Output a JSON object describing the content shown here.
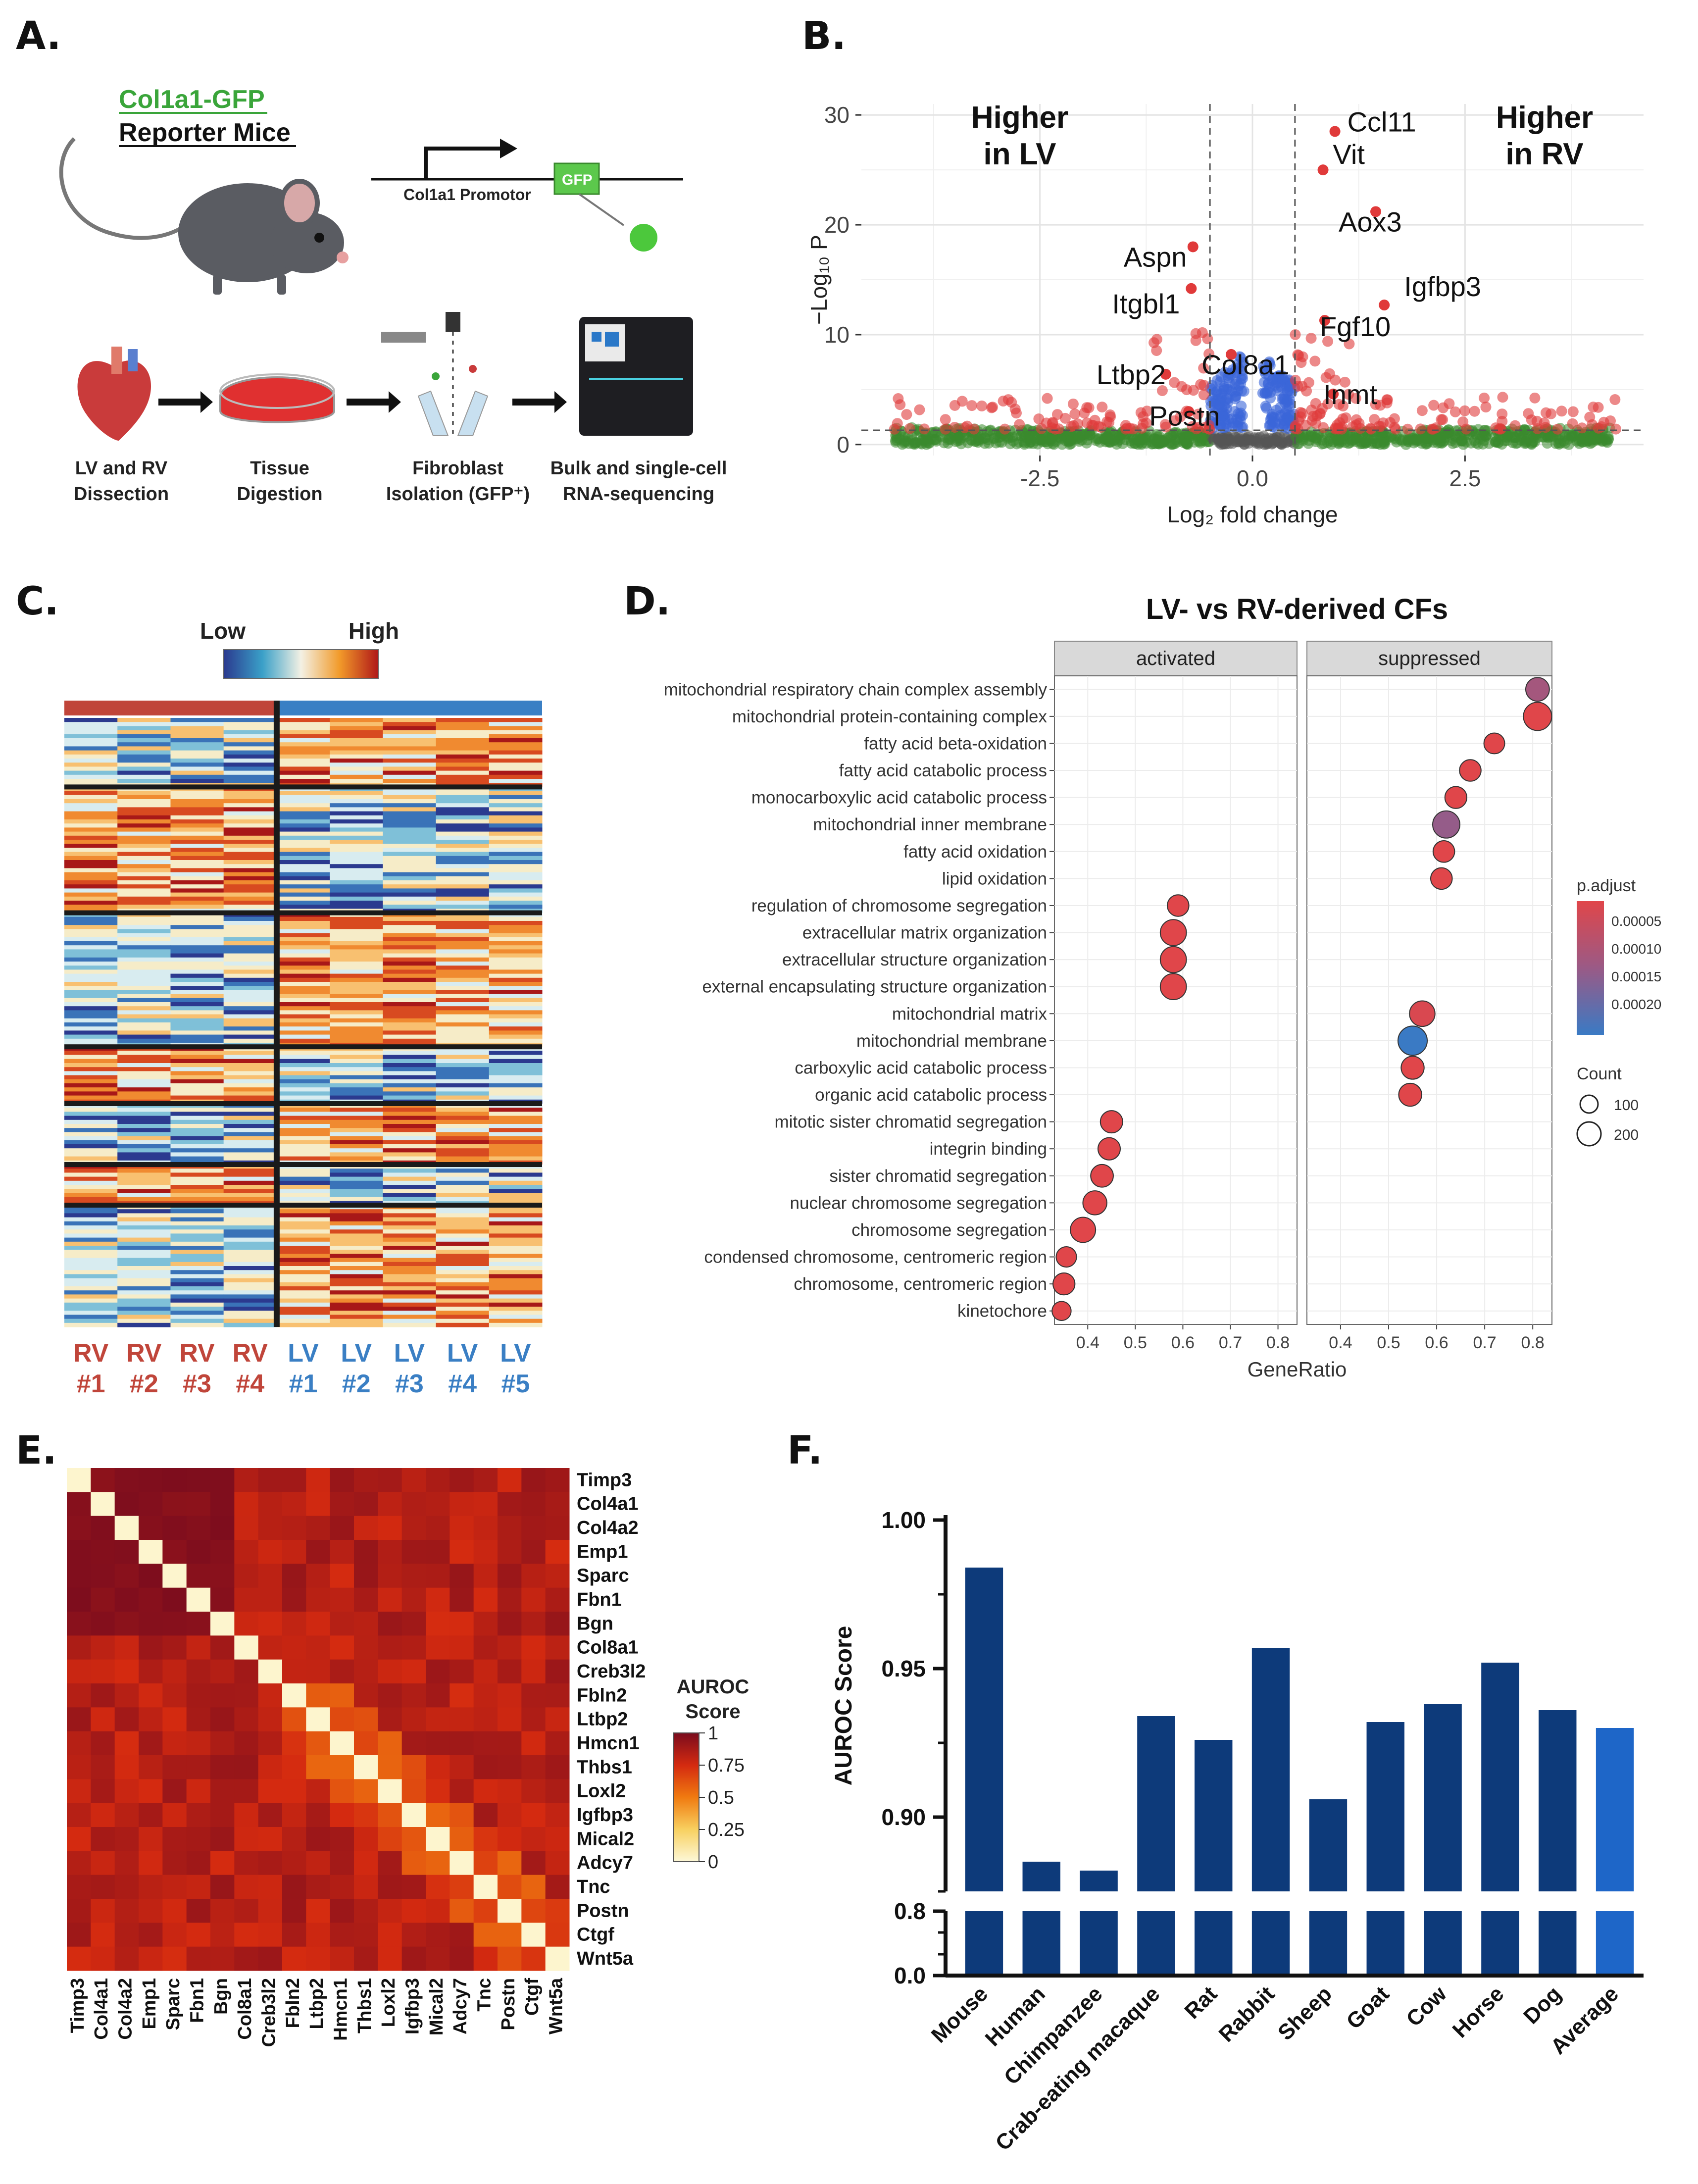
{
  "panels": {
    "a": "A.",
    "b": "B.",
    "c": "C.",
    "d": "D.",
    "e": "E.",
    "f": "F."
  },
  "panel_a": {
    "line1": "Col1a1-GFP",
    "line2": "Reporter Mice",
    "promoter": "Col1a1 Promotor",
    "gfp": "GFP",
    "steps": [
      {
        "l1": "LV and RV",
        "l2": "Dissection"
      },
      {
        "l1": "Tissue",
        "l2": "Digestion"
      },
      {
        "l1": "Fibroblast",
        "l2": "Isolation (GFP⁺)"
      },
      {
        "l1": "Bulk and single-cell",
        "l2": "RNA-sequencing"
      }
    ],
    "colors": {
      "accent_green": "#3aa53a",
      "dish_red": "#e03030"
    }
  },
  "chart_b": {
    "type": "scatter",
    "title": "",
    "xlabel": "Log₂ fold change",
    "ylabel": "−Log₁₀ P",
    "xlim": [
      -4.6,
      4.6
    ],
    "ylim": [
      -1,
      31
    ],
    "xticks": [
      "-2.5",
      "0.0",
      "2.5"
    ],
    "xtick_values": [
      -2.5,
      0,
      2.5
    ],
    "yticks": [
      "0",
      "10",
      "20",
      "30"
    ],
    "ytick_values": [
      0,
      10,
      20,
      30
    ],
    "thresholds": {
      "fc": 0.5,
      "p": 1.3
    },
    "left_note": [
      "Higher",
      "in LV"
    ],
    "right_note": [
      "Higher",
      "in RV"
    ],
    "labeled_genes": [
      {
        "name": "Ccl11",
        "x": 0.97,
        "y": 28.5
      },
      {
        "name": "Vit",
        "x": 0.83,
        "y": 25
      },
      {
        "name": "Aox3",
        "x": 1.45,
        "y": 21.2
      },
      {
        "name": "Aspn",
        "x": -0.7,
        "y": 18
      },
      {
        "name": "Itgbl1",
        "x": -0.72,
        "y": 14.2
      },
      {
        "name": "Igfbp3",
        "x": 1.55,
        "y": 12.7
      },
      {
        "name": "Fgf10",
        "x": 0.85,
        "y": 11.3
      },
      {
        "name": "Col8a1",
        "x": -0.25,
        "y": 8.2
      },
      {
        "name": "Ltbp2",
        "x": -1.02,
        "y": 6.4
      },
      {
        "name": "Inmt",
        "x": 0.95,
        "y": 4.6
      },
      {
        "name": "Postn",
        "x": -0.75,
        "y": 3.0
      }
    ],
    "colors": {
      "sig": "#e03a3a",
      "fc_only": "#3a8a2e",
      "p_only": "#3a66d8",
      "ns": "#555555"
    }
  },
  "panel_c": {
    "legend_low": "Low",
    "legend_high": "High",
    "samples": [
      {
        "a": "RV",
        "b": "#1"
      },
      {
        "a": "RV",
        "b": "#2"
      },
      {
        "a": "RV",
        "b": "#3"
      },
      {
        "a": "RV",
        "b": "#4"
      },
      {
        "a": "LV",
        "b": "#1"
      },
      {
        "a": "LV",
        "b": "#2"
      },
      {
        "a": "LV",
        "b": "#3"
      },
      {
        "a": "LV",
        "b": "#4"
      },
      {
        "a": "LV",
        "b": "#5"
      }
    ],
    "colors": {
      "rv": "#c0453a",
      "lv": "#3a7fc4"
    }
  },
  "chart_d": {
    "type": "scatter",
    "title": "LV- vs RV-derived CFs",
    "xlabel": "GeneRatio",
    "facets": [
      "activated",
      "suppressed"
    ],
    "xticks": [
      "0.4",
      "0.5",
      "0.6",
      "0.7",
      "0.8"
    ],
    "xtick_values": [
      0.4,
      0.5,
      0.6,
      0.7,
      0.8
    ],
    "xlim": [
      0.33,
      0.84
    ],
    "legend_padj_title": "p.adjust",
    "legend_padj_ticks": [
      "0.00005",
      "0.00010",
      "0.00015",
      "0.00020"
    ],
    "legend_count_title": "Count",
    "legend_count_ticks": [
      "100",
      "200"
    ],
    "terms": [
      {
        "term": "mitochondrial respiratory chain complex assembly",
        "facet": "suppressed",
        "ratio": 0.81,
        "count": 120,
        "padj": 0.00012
      },
      {
        "term": "mitochondrial protein-containing complex",
        "facet": "suppressed",
        "ratio": 0.81,
        "count": 200,
        "padj": 3e-05
      },
      {
        "term": "fatty acid beta-oxidation",
        "facet": "suppressed",
        "ratio": 0.72,
        "count": 80,
        "padj": 3e-05
      },
      {
        "term": "fatty acid catabolic process",
        "facet": "suppressed",
        "ratio": 0.67,
        "count": 90,
        "padj": 3e-05
      },
      {
        "term": "monocarboxylic acid catabolic process",
        "facet": "suppressed",
        "ratio": 0.64,
        "count": 95,
        "padj": 3e-05
      },
      {
        "term": "mitochondrial inner membrane",
        "facet": "suppressed",
        "ratio": 0.62,
        "count": 180,
        "padj": 0.00014
      },
      {
        "term": "fatty acid oxidation",
        "facet": "suppressed",
        "ratio": 0.615,
        "count": 90,
        "padj": 3e-05
      },
      {
        "term": "lipid oxidation",
        "facet": "suppressed",
        "ratio": 0.61,
        "count": 90,
        "padj": 3e-05
      },
      {
        "term": "regulation of chromosome segregation",
        "facet": "activated",
        "ratio": 0.59,
        "count": 90,
        "padj": 3e-05
      },
      {
        "term": "extracellular matrix organization",
        "facet": "activated",
        "ratio": 0.58,
        "count": 160,
        "padj": 3e-05
      },
      {
        "term": "extracellular structure organization",
        "facet": "activated",
        "ratio": 0.58,
        "count": 160,
        "padj": 3e-05
      },
      {
        "term": "external encapsulating structure organization",
        "facet": "activated",
        "ratio": 0.58,
        "count": 160,
        "padj": 3e-05
      },
      {
        "term": "mitochondrial matrix",
        "facet": "suppressed",
        "ratio": 0.57,
        "count": 150,
        "padj": 4e-05
      },
      {
        "term": "mitochondrial membrane",
        "facet": "suppressed",
        "ratio": 0.55,
        "count": 220,
        "padj": 0.00024
      },
      {
        "term": "carboxylic acid catabolic process",
        "facet": "suppressed",
        "ratio": 0.55,
        "count": 110,
        "padj": 3e-05
      },
      {
        "term": "organic acid catabolic process",
        "facet": "suppressed",
        "ratio": 0.545,
        "count": 110,
        "padj": 3e-05
      },
      {
        "term": "mitotic sister chromatid segregation",
        "facet": "activated",
        "ratio": 0.45,
        "count": 100,
        "padj": 3e-05
      },
      {
        "term": "integrin binding",
        "facet": "activated",
        "ratio": 0.445,
        "count": 100,
        "padj": 3e-05
      },
      {
        "term": "sister chromatid segregation",
        "facet": "activated",
        "ratio": 0.43,
        "count": 105,
        "padj": 3e-05
      },
      {
        "term": "nuclear chromosome segregation",
        "facet": "activated",
        "ratio": 0.415,
        "count": 125,
        "padj": 3e-05
      },
      {
        "term": "chromosome segregation",
        "facet": "activated",
        "ratio": 0.39,
        "count": 145,
        "padj": 3e-05
      },
      {
        "term": "condensed chromosome, centromeric region",
        "facet": "activated",
        "ratio": 0.355,
        "count": 75,
        "padj": 3e-05
      },
      {
        "term": "chromosome, centromeric region",
        "facet": "activated",
        "ratio": 0.35,
        "count": 95,
        "padj": 3e-05
      },
      {
        "term": "kinetochore",
        "facet": "activated",
        "ratio": 0.345,
        "count": 60,
        "padj": 3e-05
      }
    ]
  },
  "chart_e": {
    "type": "heatmap",
    "legend_title": [
      "AUROC",
      "Score"
    ],
    "legend_ticks": [
      "1",
      "0.75",
      "0.5",
      "0.25",
      "0"
    ],
    "legend_tick_values": [
      1,
      0.75,
      0.5,
      0.25,
      0
    ],
    "genes": [
      "Timp3",
      "Col4a1",
      "Col4a2",
      "Emp1",
      "Sparc",
      "Fbn1",
      "Bgn",
      "Col8a1",
      "Creb3l2",
      "Fbln2",
      "Ltbp2",
      "Hmcn1",
      "Thbs1",
      "Loxl2",
      "Igfbp3",
      "Mical2",
      "Adcy7",
      "Tnc",
      "Postn",
      "Ctgf",
      "Wnt5a"
    ]
  },
  "chart_f": {
    "type": "bar",
    "title": "",
    "xlabel": "",
    "ylabel": "AUROC Score",
    "categories": [
      "Mouse",
      "Human",
      "Chimpanzee",
      "Crab-eating macaque",
      "Rat",
      "Rabbit",
      "Sheep",
      "Goat",
      "Cow",
      "Horse",
      "Dog",
      "Average"
    ],
    "values": [
      0.984,
      0.885,
      0.882,
      0.934,
      0.926,
      0.957,
      0.906,
      0.932,
      0.938,
      0.952,
      0.936,
      0.93
    ],
    "yticks_upper": [
      "0.90",
      "0.95",
      "1.00"
    ],
    "ytick_upper_values": [
      0.9,
      0.95,
      1.0
    ],
    "yticks_lower": [
      "0.0",
      "0.8"
    ],
    "ytick_lower_values": [
      0.0,
      0.8
    ],
    "ylim_upper": [
      0.875,
      1.0
    ],
    "colors": {
      "bar": "#0d3a7a",
      "average": "#1e66c8"
    }
  }
}
